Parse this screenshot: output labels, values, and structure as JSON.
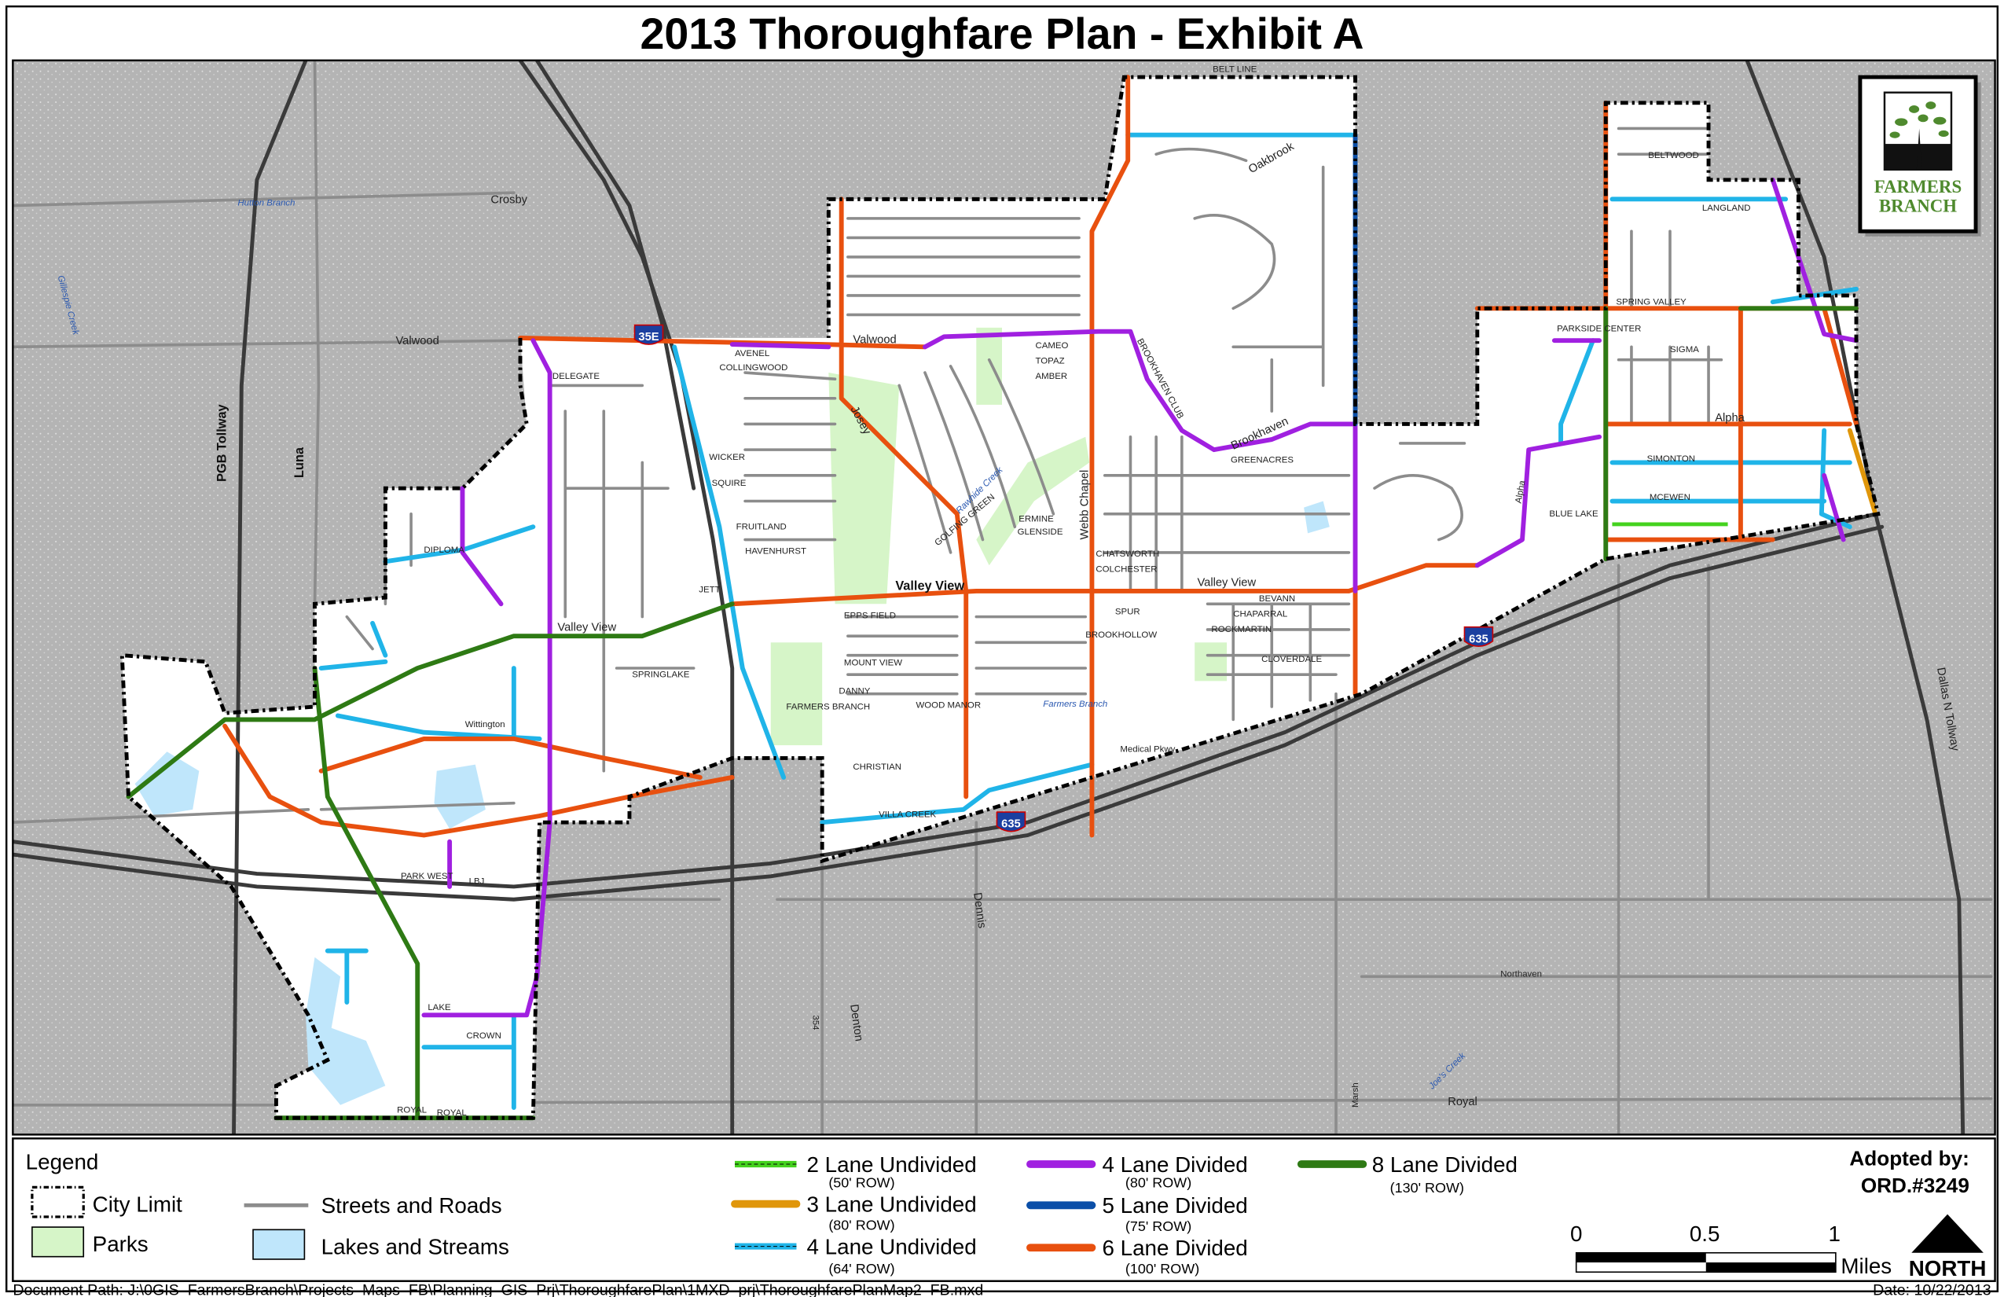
{
  "title": "2013 Thoroughfare Plan - Exhibit A",
  "logo": {
    "text_line1": "FARMERS",
    "text_line2": "BRANCH",
    "color": "#4f8a2e"
  },
  "colors": {
    "background": "#b4b4b4",
    "city": "#ffffff",
    "park": "#d6f5c8",
    "lake": "#bfe6fb",
    "two_lane_undivided": "#44d21e",
    "three_lane_undivided": "#e0960a",
    "four_lane_undivided": "#20b4e8",
    "four_lane_divided": "#a020e0",
    "five_lane_divided": "#0b4fa8",
    "six_lane_divided": "#e8500f",
    "eight_lane_divided": "#2e7a14"
  },
  "map": {
    "shields": [
      "35E",
      "635",
      "635"
    ],
    "labels": [
      "Crosby",
      "Valwood",
      "Valwood",
      "Valley View",
      "Valley View",
      "Valley View",
      "PGB Tollway",
      "Luna",
      "Dallas N Tollway",
      "BELT LINE",
      "Royal",
      "Northaven",
      "Dennis",
      "Denton",
      "Marsh",
      "Webb Chapel",
      "BROOKHAVEN CLUB",
      "Brookhaven",
      "Alpha",
      "Alpha",
      "SPRING VALLEY",
      "Josey",
      "Farmers Branch",
      "Hutton Branch",
      "Oakbrook",
      "GREENACRES",
      "DELEGATE",
      "DIPLOMA",
      "Wittington",
      "PARK WEST",
      "LBJ",
      "LAKE",
      "CROWN",
      "ROYAL",
      "BELTWOOD",
      "LANGLAND",
      "SIMONTON",
      "MCEWEN",
      "BLUE LAKE",
      "SIGMA",
      "PARKSIDE CENTER",
      "VILLA CREEK",
      "CHRISTIAN",
      "BROOKHOLLOW",
      "Medical Pkwy",
      "SPUR",
      "CHATSWORTH",
      "COLCHESTER",
      "AVENEL",
      "COLLINGWOOD",
      "WICKER",
      "SQUIRE",
      "FRUITLAND",
      "HAVENHURST",
      "JETT",
      "SPRINGLAKE",
      "WOOD MANOR",
      "DANNY",
      "FARMERS BRANCH",
      "EPPS FIELD",
      "MOUNT VIEW",
      "CAMEO",
      "TOPAZ",
      "AMBER",
      "ERMINE",
      "GLENSIDE",
      "BEVANN",
      "CHAPARRAL",
      "ROCKMARTIN",
      "CLOVERDALE",
      "Rawhide Creek",
      "GOLFING GREEN",
      "354",
      "Joe's Creek",
      "Gillespie Creek",
      "ROYAL"
    ]
  },
  "legend": {
    "title": "Legend",
    "city_limit": "City Limit",
    "parks": "Parks",
    "streets": "Streets and Roads",
    "lakes": "Lakes and Streams",
    "road_classes": [
      {
        "label": "2 Lane Undivided",
        "row": "(50' ROW)"
      },
      {
        "label": "3 Lane Undivided",
        "row": "(80' ROW)"
      },
      {
        "label": "4 Lane Undivided",
        "row": "(64' ROW)"
      },
      {
        "label": "4 Lane Divided",
        "row": "(80' ROW)"
      },
      {
        "label": "5 Lane Divided",
        "row": "(75' ROW)"
      },
      {
        "label": "6 Lane Divided",
        "row": "(100' ROW)"
      },
      {
        "label": "8 Lane Divided",
        "row": "(130' ROW)"
      }
    ]
  },
  "adopted": {
    "line1": "Adopted by:",
    "line2": "ORD.#3249"
  },
  "scale": {
    "ticks": [
      "0",
      "0.5",
      "1"
    ],
    "unit": "Miles"
  },
  "north": "NORTH",
  "footer": {
    "path": "Document Path: J:\\0GIS_FarmersBranch\\Projects_Maps_FB\\Planning_GIS_Prj\\ThoroughfarePlan\\1MXD_prj\\ThoroughfarePlanMap2_FB.mxd",
    "date": "Date: 10/22/2013"
  }
}
